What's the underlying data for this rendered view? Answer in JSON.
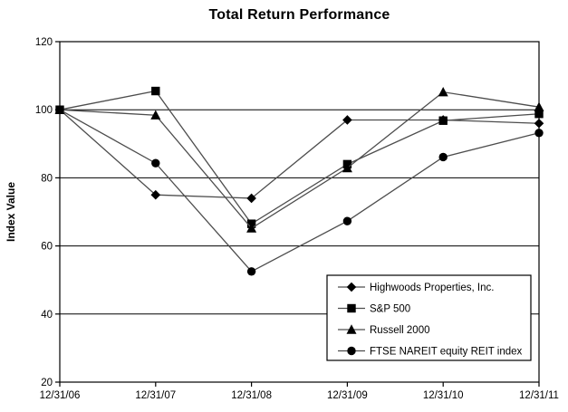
{
  "chart_data": {
    "type": "line",
    "title": "Total Return Performance",
    "ylabel": "Index Value",
    "xlabel": "",
    "categories": [
      "12/31/06",
      "12/31/07",
      "12/31/08",
      "12/31/09",
      "12/31/10",
      "12/31/11"
    ],
    "series": [
      {
        "name": "Highwoods Properties, Inc.",
        "marker": "diamond",
        "values": [
          100,
          75,
          74,
          97,
          97,
          96
        ]
      },
      {
        "name": "S&P 500",
        "marker": "square",
        "values": [
          100,
          105.5,
          66.5,
          84,
          96.8,
          98.8
        ]
      },
      {
        "name": "Russell 2000",
        "marker": "triangle",
        "values": [
          100,
          98.4,
          65.2,
          82.9,
          105.2,
          100.8
        ]
      },
      {
        "name": "FTSE NAREIT equity REIT index",
        "marker": "circle",
        "values": [
          100,
          84.3,
          52.5,
          67.3,
          86.1,
          93.2
        ]
      }
    ],
    "ylim": [
      20,
      120
    ],
    "yticks": [
      20,
      40,
      60,
      80,
      100,
      120
    ],
    "grid": "horizontal",
    "plot_frame": true,
    "legend_position": "inside-lower-right",
    "colors": {
      "background": "#ffffff",
      "line": "#4d4d4d",
      "marker": "#000000",
      "grid": "#000000",
      "frame": "#000000",
      "text": "#000000",
      "legend_bg": "#ffffff",
      "legend_border": "#000000"
    }
  }
}
